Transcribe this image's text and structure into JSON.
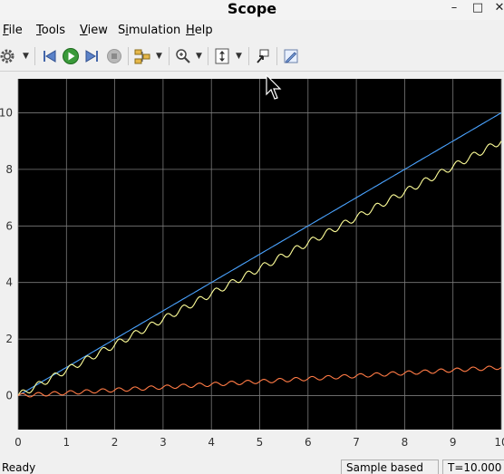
{
  "window": {
    "title": "Scope",
    "minimize": "–",
    "maximize": "□",
    "close": "✕"
  },
  "menu": [
    {
      "mnemonic": "F",
      "rest": "ile"
    },
    {
      "mnemonic": "T",
      "rest": "ools"
    },
    {
      "mnemonic": "V",
      "rest": "iew"
    },
    {
      "prefix": "S",
      "mnemonic": "i",
      "rest": "mulation"
    },
    {
      "mnemonic": "H",
      "rest": "elp"
    }
  ],
  "toolbar": {
    "icons": [
      "gear-icon",
      "step-back-icon",
      "run-icon",
      "step-forward-icon",
      "stop-icon",
      "signal-selector-icon",
      "zoom-icon",
      "autoscale-icon",
      "highlight-block-icon",
      "style-icon"
    ]
  },
  "status": {
    "state": "Ready",
    "mode": "Sample based",
    "time": "T=10.000"
  },
  "colors": {
    "plot_background": "#000000",
    "grid": "#7a7a7a",
    "series_blue": "#4aa3ff",
    "series_yellow": "#ffff99",
    "series_orange": "#ff7a45"
  },
  "chart_data": {
    "type": "line",
    "xlim": [
      0,
      10
    ],
    "ylim": [
      -1.2,
      11.2
    ],
    "x_ticks": [
      "0",
      "1",
      "2",
      "3",
      "4",
      "5",
      "6",
      "7",
      "8",
      "9",
      "10"
    ],
    "y_ticks": [
      "0",
      "2",
      "4",
      "6",
      "8",
      "10"
    ],
    "grid": true,
    "series": [
      {
        "color": "#4aa3ff",
        "x": [
          0,
          10
        ],
        "y": [
          0,
          10
        ]
      },
      {
        "color": "#ffff99",
        "x": [
          0,
          1,
          2,
          3,
          4,
          5,
          6,
          7,
          8,
          9,
          10
        ],
        "y": [
          0,
          0.9,
          1.8,
          2.7,
          3.6,
          4.5,
          5.4,
          6.3,
          7.2,
          8.1,
          9.0
        ]
      },
      {
        "color": "#ff7a45",
        "x": [
          0,
          1,
          2,
          3,
          4,
          5,
          6,
          7,
          8,
          9,
          10
        ],
        "y": [
          0,
          0.1,
          0.2,
          0.3,
          0.4,
          0.5,
          0.6,
          0.7,
          0.8,
          0.9,
          1.0
        ]
      }
    ]
  }
}
